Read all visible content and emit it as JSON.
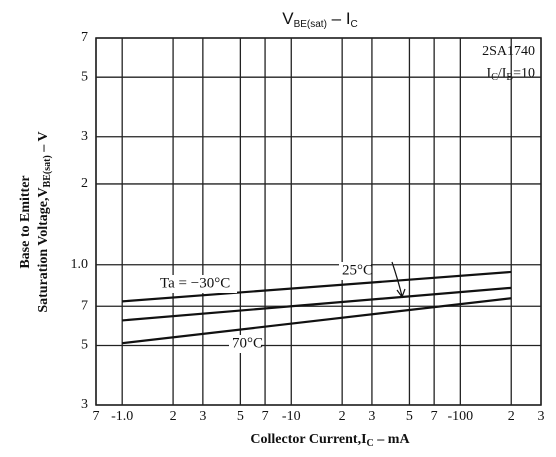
{
  "chart_data": {
    "type": "line",
    "title": [
      "V",
      "BE(sat)",
      " – ",
      "I",
      "C"
    ],
    "annotations": {
      "part": "2SA1740",
      "condition": [
        "I",
        "C",
        "/I",
        "B",
        "=10"
      ]
    },
    "y_label": [
      "Base to Emitter",
      "Saturation Voltage,V",
      "BE(sat)",
      " – V"
    ],
    "x_label": [
      "Collector Current,I",
      "C",
      " – mA"
    ],
    "x": [
      -1,
      -200
    ],
    "series": [
      {
        "name": "Ta = −30°C",
        "color": "#111111",
        "values": [
          0.73,
          0.94
        ]
      },
      {
        "name": "25°C",
        "color": "#111111",
        "values": [
          0.62,
          0.82
        ]
      },
      {
        "name": "70°C",
        "color": "#111111",
        "values": [
          0.51,
          0.75
        ]
      }
    ],
    "xlim": [
      -0.7,
      -300
    ],
    "xticks": [
      {
        "value": -0.7,
        "label": "7"
      },
      {
        "value": -1,
        "label": "-1.0"
      },
      {
        "value": -2,
        "label": "2"
      },
      {
        "value": -3,
        "label": "3"
      },
      {
        "value": -5,
        "label": "5"
      },
      {
        "value": -7,
        "label": "7"
      },
      -10,
      {
        "value": -20,
        "label": "2"
      },
      {
        "value": -30,
        "label": "3"
      },
      {
        "value": -50,
        "label": "5"
      },
      {
        "value": -70,
        "label": "7"
      },
      -100,
      {
        "value": -200,
        "label": "2"
      },
      {
        "value": -300,
        "label": "3"
      }
    ],
    "ylim": [
      0.3,
      7
    ],
    "yticks": [
      7,
      5,
      3,
      2,
      {
        "value": 1,
        "label": "1.0"
      },
      {
        "value": 0.7,
        "label": "7"
      },
      {
        "value": 0.5,
        "label": "5"
      },
      {
        "value": 0.3,
        "label": "3"
      }
    ],
    "xscale": "log",
    "yscale": "log",
    "grid": true
  }
}
